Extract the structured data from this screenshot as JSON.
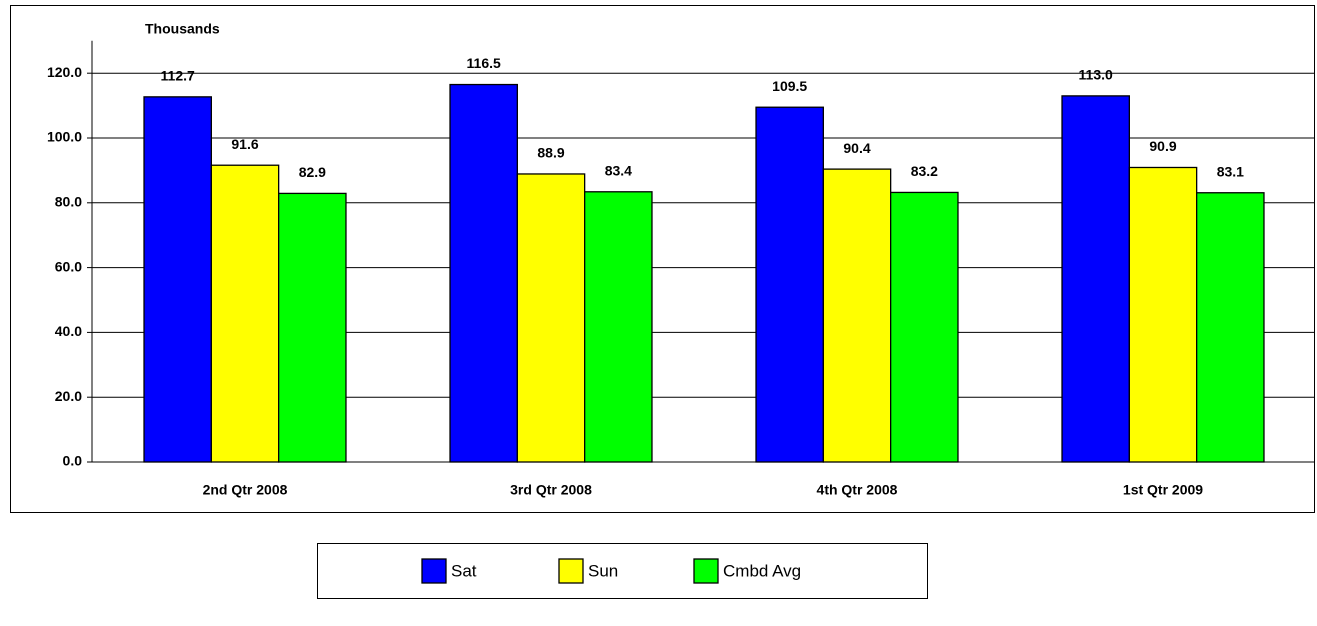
{
  "chart_data": {
    "type": "bar",
    "y_axis_label": "Thousands",
    "categories": [
      "2nd Qtr 2008",
      "3rd Qtr 2008",
      "4th Qtr 2008",
      "1st Qtr 2009"
    ],
    "series": [
      {
        "name": "Sat",
        "color": "#0000ff",
        "values": [
          112.7,
          116.5,
          109.5,
          113.0
        ],
        "value_labels": [
          "112.7",
          "116.5",
          "109.5",
          "113.0"
        ]
      },
      {
        "name": "Sun",
        "color": "#ffff00",
        "values": [
          91.6,
          88.9,
          90.4,
          90.9
        ],
        "value_labels": [
          "91.6",
          "88.9",
          "90.4",
          "90.9"
        ]
      },
      {
        "name": "Cmbd Avg",
        "color": "#00ff00",
        "values": [
          82.9,
          83.4,
          83.2,
          83.1
        ],
        "value_labels": [
          "82.9",
          "83.4",
          "83.2",
          "83.1"
        ]
      }
    ],
    "ylim": [
      0,
      130
    ],
    "yticks": [
      {
        "value": 0,
        "label": "0.0"
      },
      {
        "value": 20,
        "label": "20.0"
      },
      {
        "value": 40,
        "label": "40.0"
      },
      {
        "value": 60,
        "label": "60.0"
      },
      {
        "value": 80,
        "label": "80.0"
      },
      {
        "value": 100,
        "label": "100.0"
      },
      {
        "value": 120,
        "label": "120.0"
      }
    ],
    "grid": true,
    "legend": "bottom"
  }
}
